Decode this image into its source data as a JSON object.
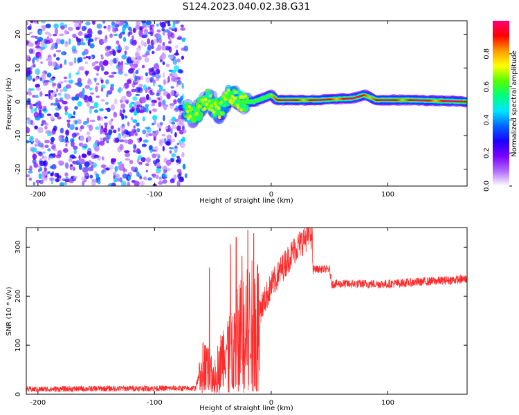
{
  "title": "S124.2023.040.02.38.G31",
  "chart_data": [
    {
      "type": "heatmap",
      "xlabel": "Height of straight line (km)",
      "ylabel": "Frequency (Hz)",
      "xlim": [
        -210,
        168
      ],
      "ylim": [
        -25,
        24
      ],
      "xticks": [
        -200,
        -100,
        0,
        100
      ],
      "yticks": [
        -20,
        -10,
        0,
        10,
        20
      ],
      "grid": false,
      "colorbar": {
        "label": "Normalized spectral amplitude",
        "range": [
          0,
          1
        ],
        "ticks": [
          "0.0",
          "0.2",
          "0.4",
          "0.6",
          "0.8"
        ],
        "colormap": [
          "#ffffff",
          "#b06cff",
          "#7a00ff",
          "#1a00ff",
          "#0066ff",
          "#00e6ff",
          "#00ff80",
          "#55ff00",
          "#ffff00",
          "#ff9900",
          "#ff0000",
          "#ff0077"
        ]
      },
      "noise_region_x": [
        -210,
        -73
      ],
      "signal_trace": [
        {
          "x": -73,
          "y": -3
        },
        {
          "x": -65,
          "y": -4
        },
        {
          "x": -55,
          "y": 1
        },
        {
          "x": -45,
          "y": -3
        },
        {
          "x": -35,
          "y": 2
        },
        {
          "x": -25,
          "y": 0
        },
        {
          "x": -15,
          "y": 0
        },
        {
          "x": 0,
          "y": 2
        },
        {
          "x": 5,
          "y": 0.5
        },
        {
          "x": 40,
          "y": 0.5
        },
        {
          "x": 70,
          "y": 1
        },
        {
          "x": 80,
          "y": 2
        },
        {
          "x": 90,
          "y": 0.5
        },
        {
          "x": 120,
          "y": 0.5
        },
        {
          "x": 168,
          "y": 0
        }
      ]
    },
    {
      "type": "line",
      "xlabel": "Height of straight line (km)",
      "ylabel": "SNR (10 * v/v)",
      "xlim": [
        -210,
        168
      ],
      "ylim": [
        0,
        340
      ],
      "xticks": [
        -200,
        -100,
        0,
        100
      ],
      "yticks": [
        0,
        100,
        200,
        300
      ],
      "grid": false,
      "series": [
        {
          "color": "#ff2a2a",
          "envelope": [
            {
              "x": -210,
              "y": 10
            },
            {
              "x": -120,
              "y": 12
            },
            {
              "x": -65,
              "y": 12
            },
            {
              "x": -58,
              "y": 70
            },
            {
              "x": -50,
              "y": 40
            },
            {
              "x": -40,
              "y": 90
            },
            {
              "x": -30,
              "y": 130
            },
            {
              "x": -20,
              "y": 150
            },
            {
              "x": -10,
              "y": 170
            },
            {
              "x": 0,
              "y": 220
            },
            {
              "x": 10,
              "y": 260
            },
            {
              "x": 20,
              "y": 295
            },
            {
              "x": 30,
              "y": 320
            },
            {
              "x": 35,
              "y": 325
            },
            {
              "x": 36,
              "y": 255
            },
            {
              "x": 50,
              "y": 255
            },
            {
              "x": 52,
              "y": 225
            },
            {
              "x": 100,
              "y": 225
            },
            {
              "x": 168,
              "y": 235
            }
          ],
          "spikes": [
            {
              "x": -53,
              "y": 258
            },
            {
              "x": -35,
              "y": 305
            },
            {
              "x": -30,
              "y": 320
            },
            {
              "x": -25,
              "y": 282
            },
            {
              "x": -20,
              "y": 335
            },
            {
              "x": -15,
              "y": 328
            },
            {
              "x": 33,
              "y": 340
            }
          ]
        }
      ]
    }
  ]
}
